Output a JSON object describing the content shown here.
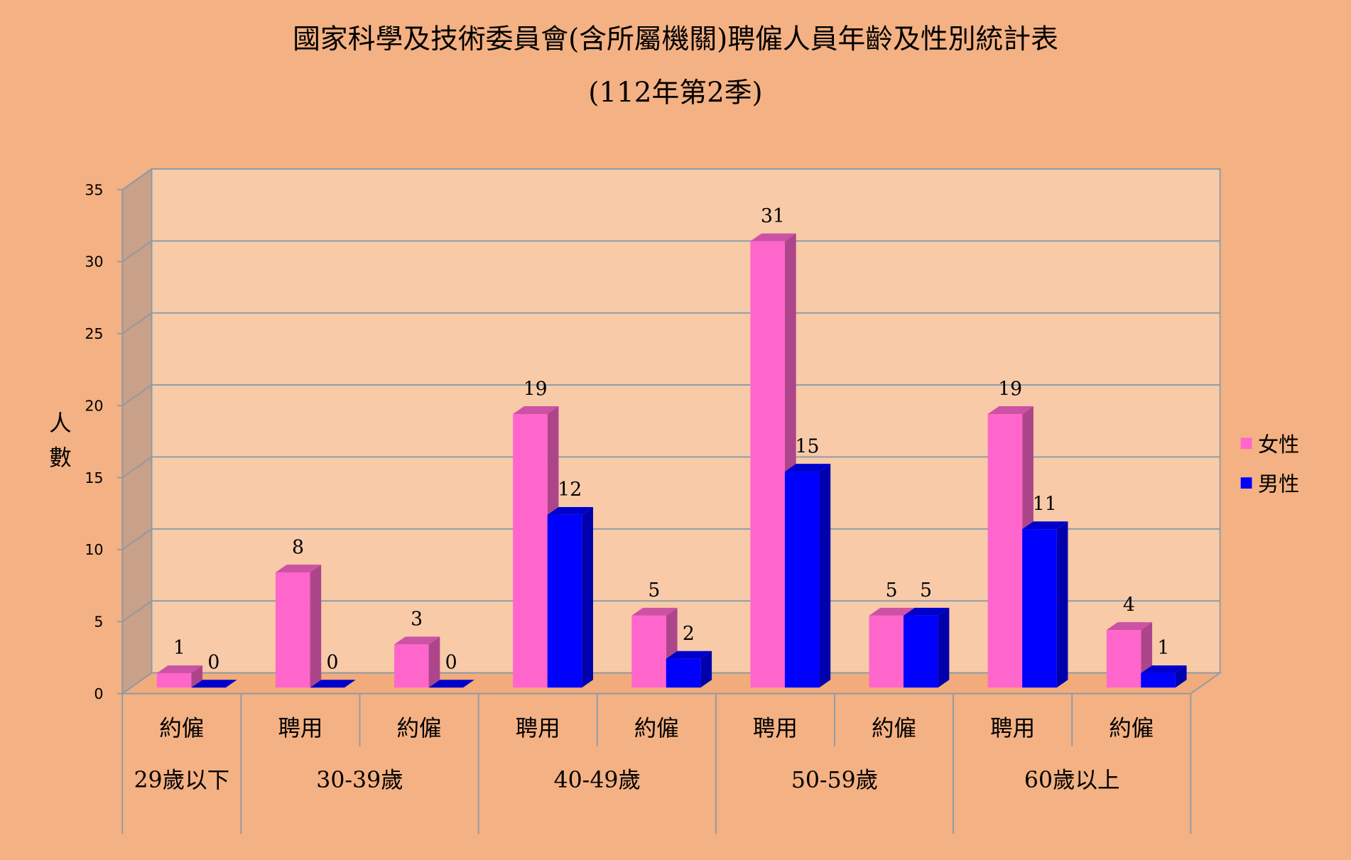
{
  "chart_data": {
    "type": "bar3d",
    "title": "國家科學及技術委員會(含所屬機關)聘僱人員年齡及性別統計表",
    "subtitle": "(112年第2季)",
    "y_label": "人數",
    "groups": [
      {
        "label": "29歲以下",
        "categories": [
          "約僱"
        ]
      },
      {
        "label": "30-39歲",
        "categories": [
          "聘用",
          "約僱"
        ]
      },
      {
        "label": "40-49歲",
        "categories": [
          "聘用",
          "約僱"
        ]
      },
      {
        "label": "50-59歲",
        "categories": [
          "聘用",
          "約僱"
        ]
      },
      {
        "label": "60歲以上",
        "categories": [
          "聘用",
          "約僱"
        ]
      }
    ],
    "series": [
      {
        "name": "女性",
        "color": "#ff66cc",
        "values": [
          1,
          8,
          3,
          19,
          5,
          31,
          5,
          19,
          4
        ]
      },
      {
        "name": "男性",
        "color": "#0000ff",
        "values": [
          0,
          0,
          0,
          12,
          2,
          15,
          5,
          11,
          1
        ]
      }
    ],
    "ylim": [
      0,
      35
    ],
    "yticks": [
      0,
      5,
      10,
      15,
      20,
      25,
      30,
      35
    ],
    "grid": true,
    "legend": "right"
  }
}
